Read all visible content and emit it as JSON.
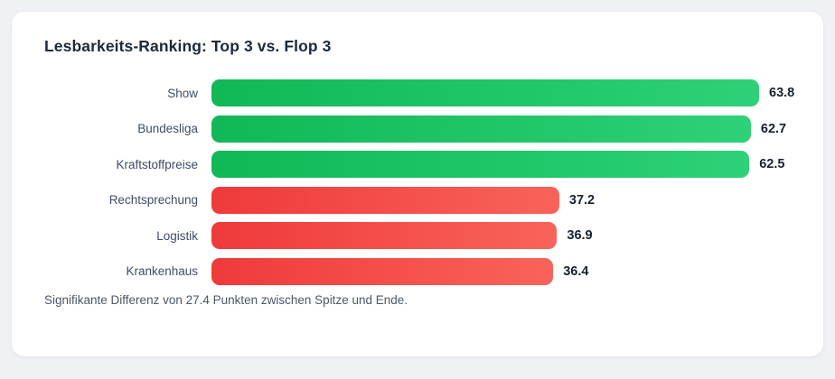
{
  "page": {
    "background": "#eff1f5",
    "card_background": "#ffffff"
  },
  "chart_data": {
    "type": "bar",
    "orientation": "horizontal",
    "title": "Lesbarkeits-Ranking: Top 3 vs. Flop 3",
    "categories": [
      "Show",
      "Bundesliga",
      "Kraftstoffpreise",
      "Rechtsprechung",
      "Logistik",
      "Krankenhaus"
    ],
    "values": [
      63.8,
      62.7,
      62.5,
      37.2,
      36.9,
      36.4
    ],
    "value_labels": [
      "63.8",
      "62.7",
      "62.5",
      "37.2",
      "36.9",
      "36.4"
    ],
    "groups": [
      "top",
      "top",
      "top",
      "flop",
      "flop",
      "flop"
    ],
    "annotation": "Signifikante Differenz von 27.4 Punkten zwischen Spitze und Ende.",
    "legend": "none",
    "grid": "off",
    "value_labels_position": "end-of-bar",
    "category_labels_position": "left",
    "bar_scale": {
      "zero_width_value": -9.1,
      "full_width_value": 63.8
    },
    "colors": {
      "top_gradient_from": "#10b857",
      "top_gradient_to": "#2ed177",
      "flop_gradient_from": "#ef3a3a",
      "flop_gradient_to": "#f9635a",
      "title_text": "#1d2a3a",
      "category_text": "#3e4c66",
      "value_text": "#18212f",
      "annotation_text": "#4b5768"
    }
  }
}
